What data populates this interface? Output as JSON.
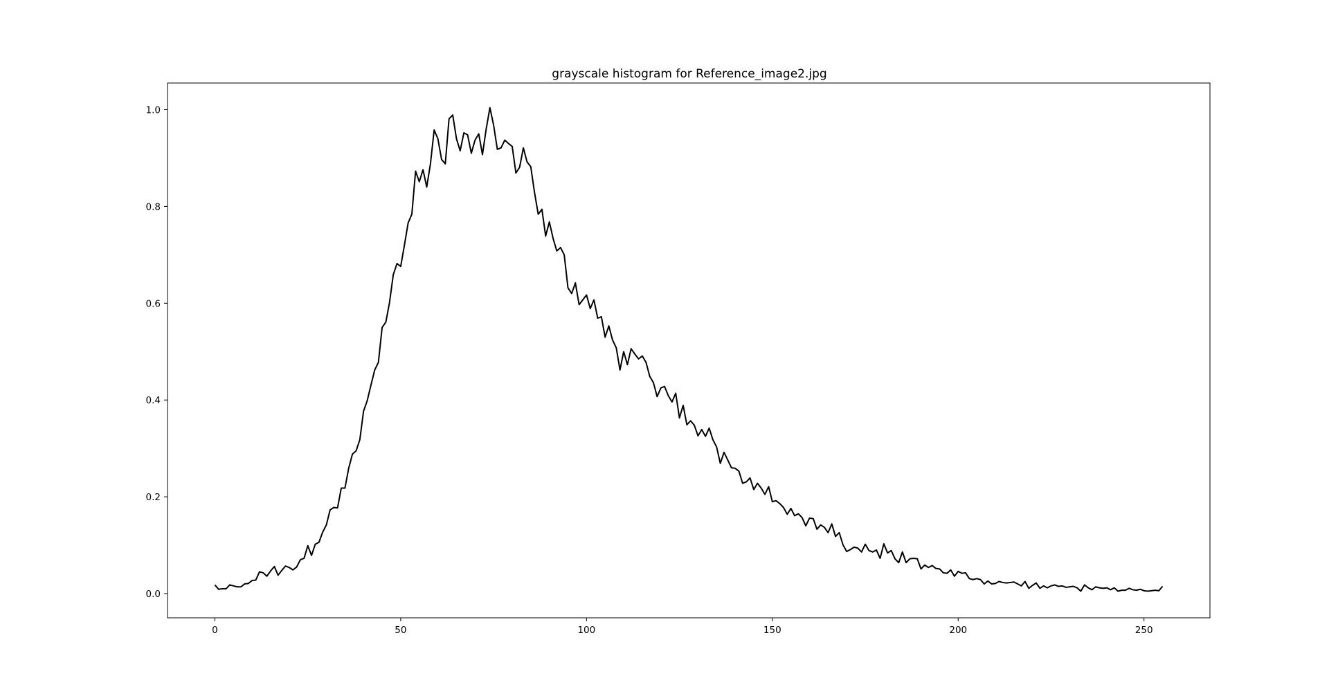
{
  "chart_data": {
    "type": "line",
    "title": "grayscale histogram for Reference_image2.jpg",
    "xlabel": "",
    "ylabel": "",
    "xlim": [
      -12.75,
      267.75
    ],
    "ylim": [
      -0.05,
      1.055
    ],
    "xticks": [
      0,
      50,
      100,
      150,
      200,
      250
    ],
    "xtick_labels": [
      "0",
      "50",
      "100",
      "150",
      "200",
      "250"
    ],
    "yticks": [
      0.0,
      0.2,
      0.4,
      0.6,
      0.8,
      1.0
    ],
    "ytick_labels": [
      "0.0",
      "0.2",
      "0.4",
      "0.6",
      "0.8",
      "1.0"
    ],
    "grid": false,
    "legend": "none",
    "line_color": "#000000",
    "x_start": 0,
    "x_step": 1,
    "series": [
      {
        "values": [
          0.018,
          0.009,
          0.01,
          0.01,
          0.018,
          0.016,
          0.014,
          0.014,
          0.02,
          0.021,
          0.027,
          0.028,
          0.045,
          0.043,
          0.036,
          0.047,
          0.056,
          0.038,
          0.048,
          0.057,
          0.054,
          0.049,
          0.055,
          0.07,
          0.073,
          0.099,
          0.079,
          0.102,
          0.106,
          0.127,
          0.142,
          0.173,
          0.178,
          0.177,
          0.218,
          0.218,
          0.259,
          0.288,
          0.295,
          0.318,
          0.377,
          0.399,
          0.431,
          0.462,
          0.478,
          0.55,
          0.561,
          0.602,
          0.659,
          0.682,
          0.676,
          0.72,
          0.766,
          0.784,
          0.873,
          0.851,
          0.876,
          0.84,
          0.888,
          0.958,
          0.94,
          0.897,
          0.888,
          0.981,
          0.989,
          0.94,
          0.915,
          0.952,
          0.948,
          0.91,
          0.937,
          0.95,
          0.907,
          0.96,
          1.004,
          0.968,
          0.918,
          0.921,
          0.937,
          0.93,
          0.924,
          0.869,
          0.881,
          0.921,
          0.892,
          0.882,
          0.829,
          0.784,
          0.794,
          0.739,
          0.768,
          0.734,
          0.708,
          0.715,
          0.7,
          0.632,
          0.62,
          0.642,
          0.597,
          0.607,
          0.617,
          0.589,
          0.607,
          0.569,
          0.572,
          0.53,
          0.553,
          0.524,
          0.508,
          0.462,
          0.5,
          0.473,
          0.506,
          0.495,
          0.485,
          0.491,
          0.478,
          0.449,
          0.436,
          0.407,
          0.425,
          0.428,
          0.409,
          0.396,
          0.414,
          0.363,
          0.389,
          0.349,
          0.357,
          0.348,
          0.326,
          0.339,
          0.325,
          0.342,
          0.318,
          0.303,
          0.269,
          0.292,
          0.276,
          0.26,
          0.259,
          0.253,
          0.228,
          0.231,
          0.239,
          0.215,
          0.228,
          0.218,
          0.205,
          0.221,
          0.19,
          0.192,
          0.186,
          0.178,
          0.164,
          0.176,
          0.161,
          0.165,
          0.157,
          0.14,
          0.156,
          0.155,
          0.133,
          0.142,
          0.137,
          0.126,
          0.144,
          0.118,
          0.126,
          0.101,
          0.087,
          0.091,
          0.096,
          0.094,
          0.086,
          0.102,
          0.089,
          0.086,
          0.09,
          0.073,
          0.103,
          0.084,
          0.089,
          0.072,
          0.064,
          0.086,
          0.064,
          0.072,
          0.073,
          0.072,
          0.051,
          0.059,
          0.054,
          0.058,
          0.052,
          0.051,
          0.043,
          0.042,
          0.049,
          0.036,
          0.046,
          0.042,
          0.043,
          0.031,
          0.029,
          0.031,
          0.029,
          0.02,
          0.026,
          0.02,
          0.021,
          0.025,
          0.023,
          0.022,
          0.023,
          0.024,
          0.02,
          0.016,
          0.025,
          0.011,
          0.017,
          0.022,
          0.011,
          0.016,
          0.012,
          0.016,
          0.018,
          0.015,
          0.016,
          0.013,
          0.014,
          0.015,
          0.012,
          0.005,
          0.018,
          0.012,
          0.008,
          0.014,
          0.012,
          0.011,
          0.012,
          0.008,
          0.012,
          0.005,
          0.007,
          0.007,
          0.011,
          0.008,
          0.007,
          0.009,
          0.006,
          0.005,
          0.006,
          0.007,
          0.006,
          0.015
        ]
      }
    ]
  }
}
